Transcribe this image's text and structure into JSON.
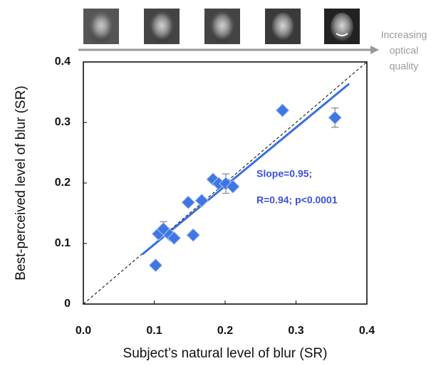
{
  "chart_data": {
    "type": "scatter",
    "xlabel": "Subject’s natural level of blur (SR)",
    "ylabel": "Best-perceived level of blur (SR)",
    "x": [
      0.102,
      0.106,
      0.113,
      0.122,
      0.128,
      0.148,
      0.155,
      0.167,
      0.183,
      0.191,
      0.201,
      0.211,
      0.281,
      0.355
    ],
    "values": [
      0.064,
      0.116,
      0.124,
      0.114,
      0.109,
      0.168,
      0.114,
      0.171,
      0.206,
      0.199,
      0.199,
      0.194,
      0.32,
      0.308
    ],
    "errors": [
      null,
      null,
      0.012,
      null,
      null,
      null,
      null,
      null,
      null,
      null,
      0.016,
      null,
      null,
      0.016
    ],
    "color": "#3f76e4",
    "fit_line": {
      "x": [
        0.083,
        0.375
      ],
      "y": [
        0.082,
        0.364
      ],
      "color": "#3a6fe0"
    },
    "identity_line": {
      "x": [
        0,
        0.4
      ],
      "y": [
        0,
        0.4
      ]
    },
    "annotations": [
      "Slope=0.95;",
      "R=0.94; p<0.0001"
    ],
    "arrow_label": [
      "Increasing",
      "optical",
      "quality"
    ],
    "xlim": [
      0,
      0.4
    ],
    "ylim": [
      0,
      0.4
    ],
    "xticks": [
      {
        "value": 0,
        "label": "0.0"
      },
      0.1,
      0.2,
      0.3,
      0.4
    ],
    "yticks": [
      0,
      0.1,
      0.2,
      0.3,
      0.4
    ]
  }
}
